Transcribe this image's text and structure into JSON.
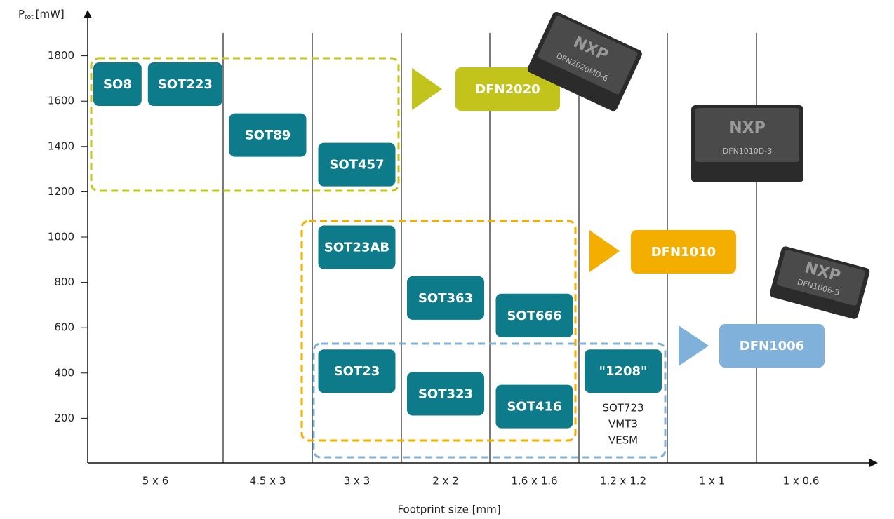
{
  "chart_data": {
    "type": "footprint-map",
    "y_title": {
      "symbol": "P",
      "subscript": "tot",
      "unit": "[mW]"
    },
    "x_title": "Footprint size [mm]",
    "ylim": [
      0,
      2000
    ],
    "yticks": [
      200,
      400,
      600,
      800,
      1000,
      1200,
      1400,
      1600,
      1800
    ],
    "categories": [
      {
        "label": "5 x 6",
        "packages": [
          {
            "name": "SO8",
            "power": 1675
          },
          {
            "name": "SOT223",
            "power": 1675
          }
        ]
      },
      {
        "label": "4.5 x 3",
        "packages": [
          {
            "name": "SOT89",
            "power": 1450
          }
        ]
      },
      {
        "label": "3 x 3",
        "packages": [
          {
            "name": "SOT457",
            "power": 1320
          },
          {
            "name": "SOT23AB",
            "power": 955
          },
          {
            "name": "SOT23",
            "power": 408
          }
        ]
      },
      {
        "label": "2 x 2",
        "packages": [
          {
            "name": "SOT363",
            "power": 731
          },
          {
            "name": "SOT323",
            "power": 308
          }
        ]
      },
      {
        "label": "1.6 x 1.6",
        "packages": [
          {
            "name": "SOT666",
            "power": 654
          },
          {
            "name": "SOT416",
            "power": 252
          }
        ]
      },
      {
        "label": "1.2 x 1.2",
        "packages": [
          {
            "name": "\"1208\"",
            "power": 408,
            "aliases": [
              "SOT723",
              "VMT3",
              "VESM"
            ]
          }
        ]
      },
      {
        "label": "1 x 1",
        "packages": []
      },
      {
        "label": "1 x 0.6",
        "packages": []
      }
    ],
    "package_color": "#0d7b8a",
    "groups": [
      {
        "name": "DFN2020",
        "color": "#c2c41c",
        "chip": "DFN2020MD-6"
      },
      {
        "name": "DFN1010",
        "color": "#f3ae00",
        "chip": "DFN1010D-3"
      },
      {
        "name": "DFN1006",
        "color": "#7fb1da",
        "chip": "DFN1006-3"
      }
    ],
    "logo": "NXP"
  }
}
